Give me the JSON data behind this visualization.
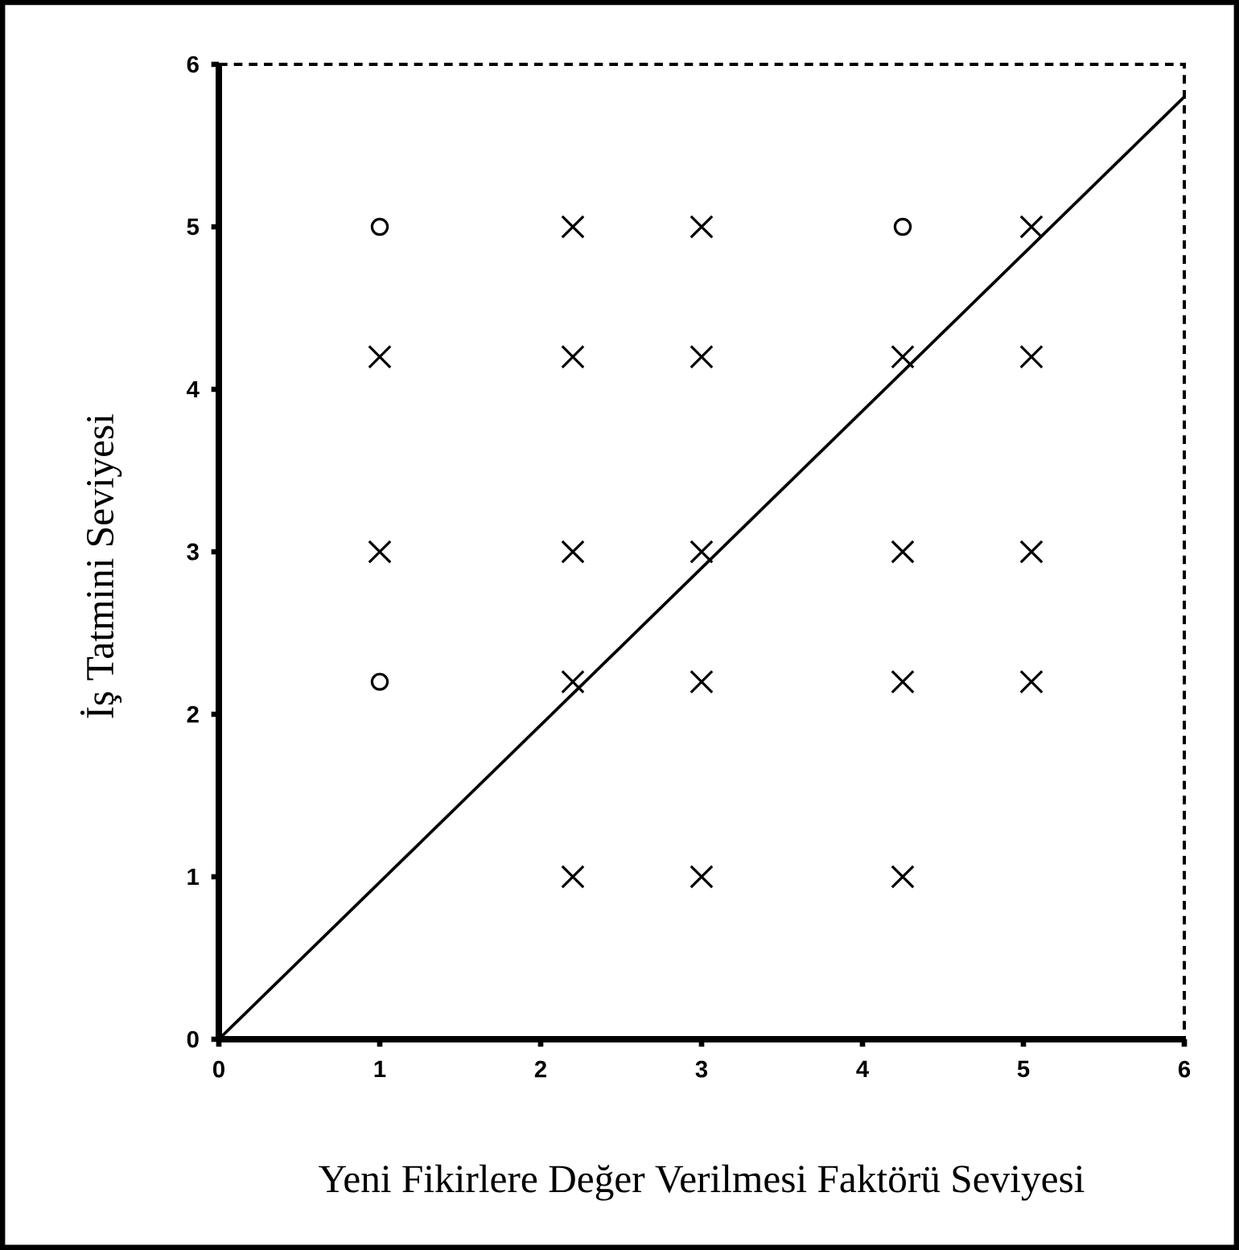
{
  "chart_data": {
    "type": "scatter",
    "xlabel": "Yeni Fikirlere Değer Verilmesi Faktörü Seviyesi",
    "ylabel": "İş Tatmini Seviyesi",
    "xlim": [
      0,
      6
    ],
    "ylim": [
      0,
      6
    ],
    "xticks": [
      0,
      1,
      2,
      3,
      4,
      5,
      6
    ],
    "yticks": [
      0,
      1,
      2,
      3,
      4,
      5,
      6
    ],
    "series": [
      {
        "type": "scatter",
        "color": "#000000",
        "marker": "circle",
        "x": [
          1,
          4.25,
          1
        ],
        "values": [
          5,
          5,
          2.2
        ]
      },
      {
        "type": "scatter",
        "color": "#000000",
        "marker": "cross",
        "x": [
          2.2,
          3,
          5.05,
          1,
          2.2,
          3,
          4.25,
          5.05,
          1,
          2.2,
          3,
          4.25,
          5.05,
          2.2,
          3,
          4.25,
          5.05,
          2.2,
          3,
          4.25
        ],
        "values": [
          5,
          5,
          5,
          4.2,
          4.2,
          4.2,
          4.2,
          4.2,
          3,
          3,
          3,
          3,
          3,
          2.2,
          2.2,
          2.2,
          2.2,
          1,
          1,
          1
        ]
      },
      {
        "type": "line",
        "color": "#000000",
        "marker": "none",
        "line_style": "solid",
        "x": [
          0,
          6
        ],
        "values": [
          0,
          5.8
        ]
      }
    ]
  }
}
